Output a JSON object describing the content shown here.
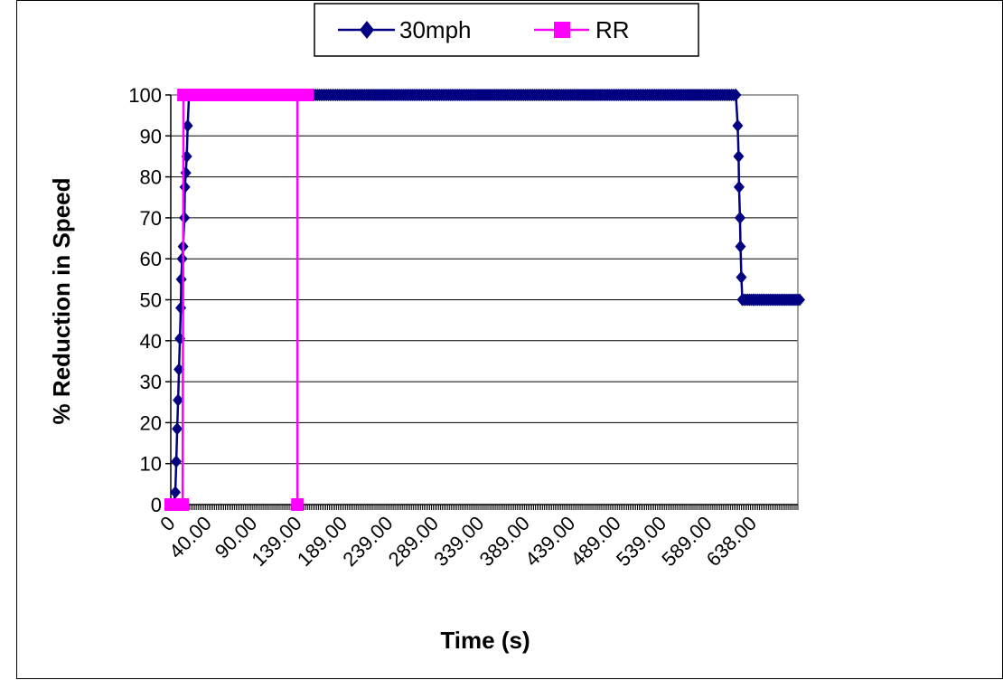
{
  "chart_data": {
    "type": "line",
    "title": "",
    "xlabel": "Time (s)",
    "ylabel": "% Reduction in Speed",
    "ylim": [
      0,
      100
    ],
    "yticks": [
      "0",
      "10",
      "20",
      "30",
      "40",
      "50",
      "60",
      "70",
      "80",
      "90",
      "100"
    ],
    "xlim": [
      0,
      688
    ],
    "xtick_labels": [
      "0",
      "40.00",
      "90.00",
      "139.00",
      "189.00",
      "239.00",
      "289.00",
      "339.00",
      "389.00",
      "439.00",
      "489.00",
      "539.00",
      "589.00",
      "638.00"
    ],
    "xtick_values": [
      0,
      40,
      90,
      139,
      189,
      239,
      289,
      339,
      389,
      439,
      489,
      539,
      589,
      638
    ],
    "grid": "horizontal",
    "legend_position": "top-center",
    "series": [
      {
        "name": "30mph",
        "color": "#000080",
        "marker": "diamond",
        "points": [
          [
            3,
            0
          ],
          [
            5,
            3
          ],
          [
            6,
            10.5
          ],
          [
            7,
            18.5
          ],
          [
            8,
            25.5
          ],
          [
            9,
            33
          ],
          [
            10,
            40.5
          ],
          [
            11,
            48
          ],
          [
            11.5,
            55
          ],
          [
            12.5,
            60
          ],
          [
            13.5,
            63
          ],
          [
            15,
            70
          ],
          [
            15.5,
            77.5
          ],
          [
            16.5,
            81
          ],
          [
            17.5,
            85
          ],
          [
            18.5,
            92.5
          ],
          [
            20,
            100
          ],
          [
            25,
            100
          ],
          [
            40,
            100
          ],
          [
            90,
            100
          ],
          [
            139,
            100
          ],
          [
            189,
            100
          ],
          [
            239,
            100
          ],
          [
            289,
            100
          ],
          [
            339,
            100
          ],
          [
            389,
            100
          ],
          [
            439,
            100
          ],
          [
            489,
            100
          ],
          [
            539,
            100
          ],
          [
            589,
            100
          ],
          [
            620,
            100
          ],
          [
            622,
            92.5
          ],
          [
            623,
            85
          ],
          [
            623.5,
            77.5
          ],
          [
            624.5,
            70
          ],
          [
            625,
            63
          ],
          [
            626,
            55.5
          ],
          [
            627,
            50
          ],
          [
            640,
            50
          ],
          [
            660,
            50
          ],
          [
            680,
            50
          ],
          [
            690,
            50
          ]
        ]
      },
      {
        "name": "RR",
        "color": "#FF00FF",
        "marker": "square",
        "points": [
          [
            0,
            0
          ],
          [
            5,
            0
          ],
          [
            8,
            0
          ],
          [
            11,
            0
          ],
          [
            13,
            0
          ],
          [
            14,
            100
          ],
          [
            20,
            100
          ],
          [
            40,
            100
          ],
          [
            60,
            100
          ],
          [
            80,
            100
          ],
          [
            100,
            100
          ],
          [
            120,
            100
          ],
          [
            139,
            100
          ],
          [
            139,
            0
          ],
          [
            139,
            100
          ],
          [
            150,
            100
          ]
        ]
      }
    ]
  }
}
